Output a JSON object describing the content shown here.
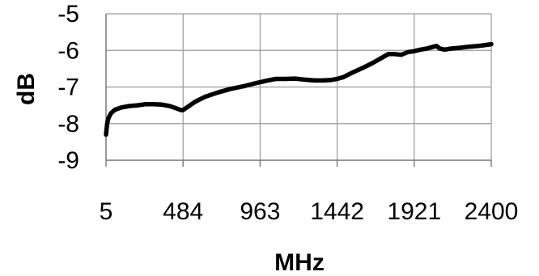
{
  "chart_data": {
    "type": "line",
    "title": "",
    "xlabel": "MHz",
    "ylabel": "dB",
    "xlim": [
      5,
      2400
    ],
    "ylim": [
      -9,
      -5
    ],
    "x_ticks": [
      5,
      484,
      963,
      1442,
      1921,
      2400
    ],
    "x_tick_labels": [
      "5",
      "484",
      "963",
      "1442",
      "1921",
      "2400"
    ],
    "y_ticks": [
      -5,
      -6,
      -7,
      -8,
      -9
    ],
    "y_tick_labels": [
      "-5",
      "-6",
      "-7",
      "-8",
      "-9"
    ],
    "grid": true,
    "legend": "none",
    "series": [
      {
        "color": "#000000",
        "x": [
          5,
          12,
          20,
          35,
          60,
          100,
          150,
          200,
          250,
          300,
          350,
          400,
          440,
          470,
          484,
          510,
          560,
          620,
          700,
          780,
          860,
          930,
          963,
          1010,
          1060,
          1120,
          1180,
          1240,
          1300,
          1350,
          1400,
          1442,
          1480,
          1540,
          1600,
          1660,
          1720,
          1760,
          1800,
          1840,
          1880,
          1921,
          1960,
          2000,
          2040,
          2060,
          2080,
          2110,
          2150,
          2200,
          2260,
          2320,
          2370,
          2400
        ],
        "y": [
          -8.3,
          -8.0,
          -7.85,
          -7.72,
          -7.62,
          -7.56,
          -7.52,
          -7.5,
          -7.47,
          -7.47,
          -7.48,
          -7.52,
          -7.58,
          -7.63,
          -7.63,
          -7.55,
          -7.4,
          -7.27,
          -7.15,
          -7.05,
          -6.98,
          -6.9,
          -6.87,
          -6.82,
          -6.78,
          -6.78,
          -6.77,
          -6.8,
          -6.82,
          -6.82,
          -6.81,
          -6.78,
          -6.73,
          -6.6,
          -6.48,
          -6.35,
          -6.2,
          -6.1,
          -6.1,
          -6.12,
          -6.05,
          -6.02,
          -5.98,
          -5.95,
          -5.9,
          -5.88,
          -5.95,
          -5.98,
          -5.95,
          -5.93,
          -5.9,
          -5.88,
          -5.85,
          -5.83
        ]
      }
    ]
  }
}
